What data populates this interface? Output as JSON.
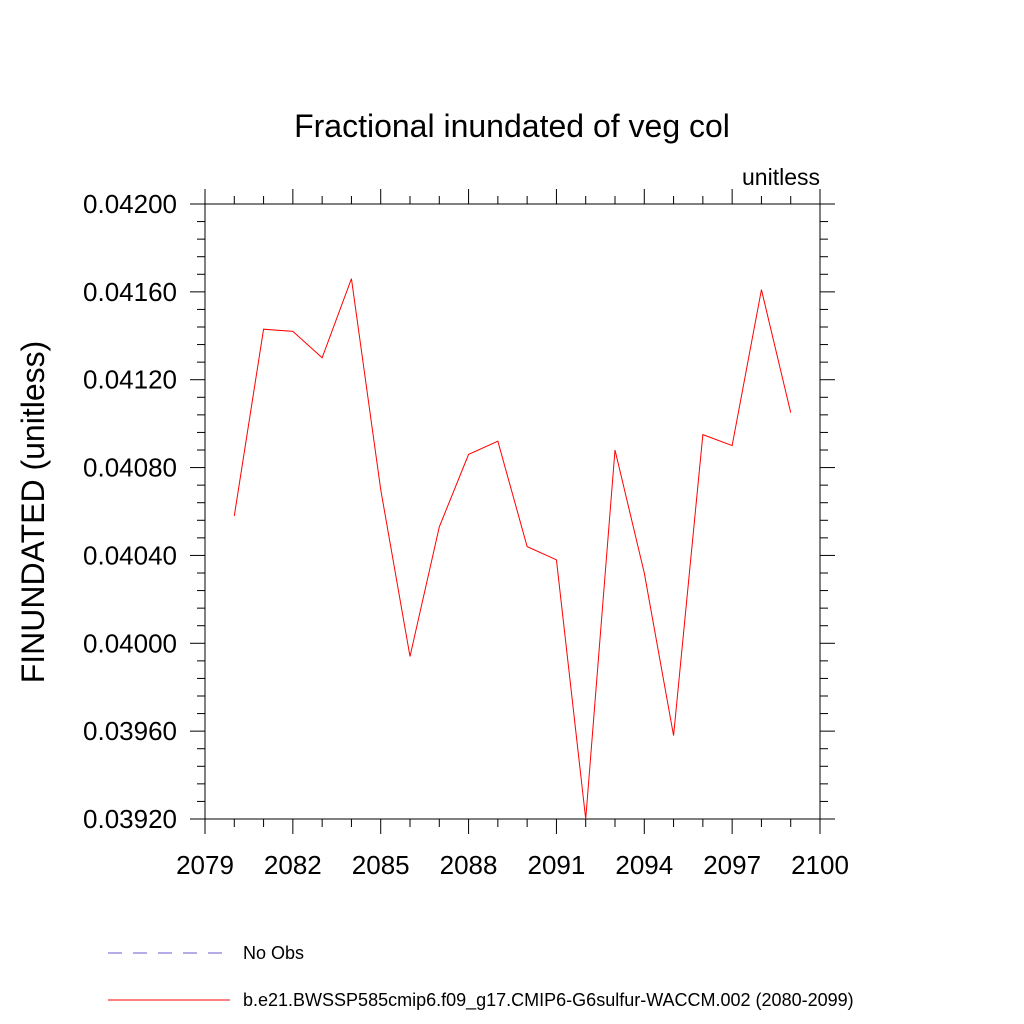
{
  "chart_data": {
    "type": "line",
    "title": "Fractional inundated of veg col",
    "units": "unitless",
    "ylabel": "FINUNDATED  (unitless)",
    "xlabel": "",
    "xlim": [
      2079,
      2100
    ],
    "ylim": [
      0.0392,
      0.042
    ],
    "x_major_ticks": [
      2079,
      2082,
      2085,
      2088,
      2091,
      2094,
      2097,
      2100
    ],
    "x_tick_labels": [
      "2079",
      "2082",
      "2085",
      "2088",
      "2091",
      "2094",
      "2097",
      "2100"
    ],
    "y_major_ticks": [
      0.0392,
      0.0396,
      0.04,
      0.0404,
      0.0408,
      0.0412,
      0.0416,
      0.042
    ],
    "y_tick_labels": [
      "0.03920",
      "0.03960",
      "0.04000",
      "0.04040",
      "0.04080",
      "0.04120",
      "0.04160",
      "0.04200"
    ],
    "grid": false,
    "legend_placement": "bottom",
    "x": [
      2080,
      2081,
      2082,
      2083,
      2084,
      2085,
      2086,
      2087,
      2088,
      2089,
      2090,
      2091,
      2092,
      2093,
      2094,
      2095,
      2096,
      2097,
      2098,
      2099
    ],
    "series": [
      {
        "name": "b.e21.BWSSP585cmip6.f09_g17.CMIP6-G6sulfur-WACCM.002 (2080-2099)",
        "color": "#ff0000",
        "style": "solid",
        "values": [
          0.04058,
          0.04143,
          0.04142,
          0.0413,
          0.04166,
          0.0407,
          0.03994,
          0.04053,
          0.04086,
          0.04092,
          0.04044,
          0.04038,
          0.0392,
          0.04088,
          0.04032,
          0.03958,
          0.04095,
          0.0409,
          0.04161,
          0.04105
        ]
      }
    ],
    "legend": [
      {
        "label": "No Obs",
        "color": "#6a5acd",
        "style": "dashed"
      },
      {
        "label": "b.e21.BWSSP585cmip6.f09_g17.CMIP6-G6sulfur-WACCM.002 (2080-2099)",
        "color": "#ff0000",
        "style": "solid"
      }
    ]
  }
}
